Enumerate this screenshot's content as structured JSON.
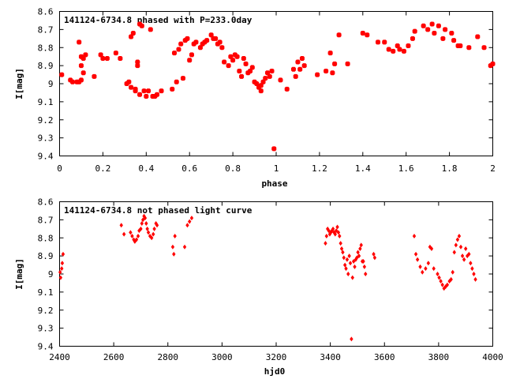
{
  "colors": {
    "points": "#ff0000",
    "axes": "#000000",
    "background": "#ffffff"
  },
  "chart_data": [
    {
      "type": "scatter",
      "title": "141124-6734.8 phased with P=233.0day",
      "xlabel": "phase",
      "ylabel": "I[mag]",
      "xlim": [
        0,
        2
      ],
      "ylim": [
        8.6,
        9.4
      ],
      "y_inverted": true,
      "grid": false,
      "xticks": [
        0,
        0.2,
        0.4,
        0.6,
        0.8,
        1,
        1.2,
        1.4,
        1.6,
        1.8,
        2
      ],
      "xtick_labels": [
        "0",
        "0.2",
        "0.4",
        "0.6",
        "0.8",
        "1",
        "1.2",
        "1.4",
        "1.6",
        "1.8",
        "2"
      ],
      "yticks": [
        8.6,
        8.7,
        8.8,
        8.9,
        9.0,
        9.1,
        9.2,
        9.3,
        9.4
      ],
      "ytick_labels": [
        "8.6",
        "8.7",
        "8.8",
        "8.9",
        "9",
        "9.1",
        "9.2",
        "9.3",
        "9.4"
      ],
      "marker": "square",
      "x": [
        0.01,
        0.05,
        0.06,
        0.08,
        0.09,
        0.09,
        0.1,
        0.1,
        0.1,
        0.11,
        0.11,
        0.12,
        0.16,
        0.19,
        0.2,
        0.22,
        0.26,
        0.28,
        0.31,
        0.32,
        0.33,
        0.33,
        0.34,
        0.35,
        0.35,
        0.36,
        0.36,
        0.37,
        0.37,
        0.38,
        0.39,
        0.4,
        0.41,
        0.42,
        0.43,
        0.44,
        0.45,
        0.47,
        0.52,
        0.53,
        0.54,
        0.55,
        0.56,
        0.57,
        0.58,
        0.59,
        0.6,
        0.61,
        0.62,
        0.63,
        0.65,
        0.66,
        0.67,
        0.68,
        0.7,
        0.71,
        0.72,
        0.73,
        0.74,
        0.75,
        0.76,
        0.78,
        0.79,
        0.8,
        0.81,
        0.82,
        0.83,
        0.84,
        0.85,
        0.86,
        0.87,
        0.88,
        0.89,
        0.9,
        0.91,
        0.92,
        0.93,
        0.93,
        0.94,
        0.95,
        0.96,
        0.97,
        0.98,
        0.99,
        1.02,
        1.05,
        1.08,
        1.09,
        1.1,
        1.11,
        1.12,
        1.13,
        1.19,
        1.23,
        1.25,
        1.26,
        1.27,
        1.29,
        1.33,
        1.4,
        1.42,
        1.47,
        1.5,
        1.52,
        1.54,
        1.56,
        1.57,
        1.59,
        1.61,
        1.63,
        1.64,
        1.68,
        1.7,
        1.72,
        1.73,
        1.75,
        1.77,
        1.78,
        1.81,
        1.82,
        1.84,
        1.85,
        1.89,
        1.93,
        1.96,
        1.99,
        2.0
      ],
      "y": [
        8.95,
        8.98,
        8.99,
        8.99,
        8.77,
        8.99,
        8.85,
        8.98,
        8.9,
        8.94,
        8.86,
        8.84,
        8.96,
        8.84,
        8.86,
        8.86,
        8.83,
        8.86,
        9.0,
        8.99,
        8.74,
        9.02,
        8.72,
        9.03,
        9.04,
        8.9,
        8.88,
        8.67,
        9.06,
        8.68,
        9.04,
        9.07,
        9.04,
        8.7,
        9.07,
        9.07,
        9.06,
        9.04,
        9.03,
        8.83,
        8.99,
        8.81,
        8.78,
        8.97,
        8.76,
        8.75,
        8.87,
        8.84,
        8.78,
        8.77,
        8.8,
        8.78,
        8.77,
        8.76,
        8.73,
        8.75,
        8.75,
        8.78,
        8.77,
        8.8,
        8.88,
        8.9,
        8.85,
        8.87,
        8.84,
        8.85,
        8.93,
        8.96,
        8.86,
        8.89,
        8.94,
        8.93,
        8.91,
        8.99,
        9.0,
        9.02,
        9.04,
        9.01,
        8.99,
        8.97,
        8.94,
        8.96,
        8.93,
        9.36,
        8.98,
        9.03,
        8.92,
        8.96,
        8.88,
        8.92,
        8.86,
        8.9,
        8.95,
        8.93,
        8.83,
        8.94,
        8.89,
        8.73,
        8.89,
        8.72,
        8.73,
        8.77,
        8.77,
        8.81,
        8.82,
        8.79,
        8.81,
        8.82,
        8.79,
        8.75,
        8.71,
        8.68,
        8.7,
        8.67,
        8.72,
        8.68,
        8.75,
        8.7,
        8.72,
        8.76,
        8.79,
        8.79,
        8.8,
        8.74,
        8.8,
        8.9,
        8.89
      ]
    },
    {
      "type": "scatter",
      "title": "141124-6734.8 not phased light curve",
      "xlabel": "hjd0",
      "ylabel": "I[mag]",
      "xlim": [
        2400,
        4000
      ],
      "ylim": [
        8.6,
        9.4
      ],
      "y_inverted": true,
      "grid": false,
      "xticks": [
        2400,
        2600,
        2800,
        3000,
        3200,
        3400,
        3600,
        3800,
        4000
      ],
      "xtick_labels": [
        "2400",
        "2600",
        "2800",
        "3000",
        "3200",
        "3400",
        "3600",
        "3800",
        "4000"
      ],
      "yticks": [
        8.6,
        8.7,
        8.8,
        8.9,
        9.0,
        9.1,
        9.2,
        9.3,
        9.4
      ],
      "ytick_labels": [
        "8.6",
        "8.7",
        "8.8",
        "8.9",
        "9",
        "9.1",
        "9.2",
        "9.3",
        "9.4"
      ],
      "marker": "diamond",
      "x": [
        2402,
        2404,
        2408,
        2410,
        2413,
        2628,
        2638,
        2662,
        2668,
        2674,
        2678,
        2684,
        2690,
        2694,
        2700,
        2704,
        2708,
        2712,
        2716,
        2720,
        2724,
        2728,
        2734,
        2740,
        2746,
        2750,
        2756,
        2760,
        2818,
        2822,
        2826,
        2862,
        2872,
        2880,
        2888,
        3382,
        3386,
        3390,
        3394,
        3398,
        3402,
        3406,
        3410,
        3414,
        3418,
        3422,
        3426,
        3430,
        3434,
        3438,
        3442,
        3446,
        3450,
        3454,
        3458,
        3462,
        3466,
        3470,
        3474,
        3478,
        3482,
        3486,
        3490,
        3494,
        3498,
        3502,
        3506,
        3510,
        3514,
        3518,
        3522,
        3526,
        3530,
        3560,
        3564,
        3710,
        3716,
        3722,
        3732,
        3740,
        3752,
        3762,
        3768,
        3774,
        3782,
        3796,
        3802,
        3808,
        3814,
        3820,
        3826,
        3832,
        3840,
        3846,
        3852,
        3858,
        3864,
        3870,
        3876,
        3882,
        3888,
        3894,
        3900,
        3906,
        3912,
        3918,
        3924,
        3930,
        3936
      ],
      "y": [
        8.99,
        9.02,
        8.97,
        8.94,
        8.89,
        8.73,
        8.78,
        8.77,
        8.79,
        8.81,
        8.82,
        8.81,
        8.79,
        8.76,
        8.75,
        8.72,
        8.7,
        8.68,
        8.69,
        8.72,
        8.75,
        8.77,
        8.79,
        8.8,
        8.78,
        8.75,
        8.72,
        8.73,
        8.85,
        8.89,
        8.79,
        8.85,
        8.73,
        8.71,
        8.69,
        8.83,
        8.79,
        8.75,
        8.76,
        8.78,
        8.77,
        8.76,
        8.75,
        8.77,
        8.78,
        8.76,
        8.74,
        8.77,
        8.79,
        8.83,
        8.86,
        8.88,
        8.91,
        8.95,
        8.97,
        8.92,
        9.0,
        8.9,
        8.94,
        9.36,
        9.02,
        8.93,
        8.96,
        8.92,
        8.91,
        8.88,
        8.9,
        8.86,
        8.84,
        8.93,
        8.93,
        8.96,
        9.0,
        8.89,
        8.91,
        8.79,
        8.89,
        8.92,
        8.96,
        8.99,
        8.97,
        8.94,
        8.85,
        8.86,
        8.97,
        9.0,
        9.02,
        9.04,
        9.06,
        9.08,
        9.07,
        9.06,
        9.04,
        9.03,
        8.99,
        8.88,
        8.84,
        8.81,
        8.79,
        8.85,
        8.9,
        8.92,
        8.86,
        8.9,
        8.89,
        8.94,
        8.97,
        9.0,
        9.03
      ]
    }
  ]
}
